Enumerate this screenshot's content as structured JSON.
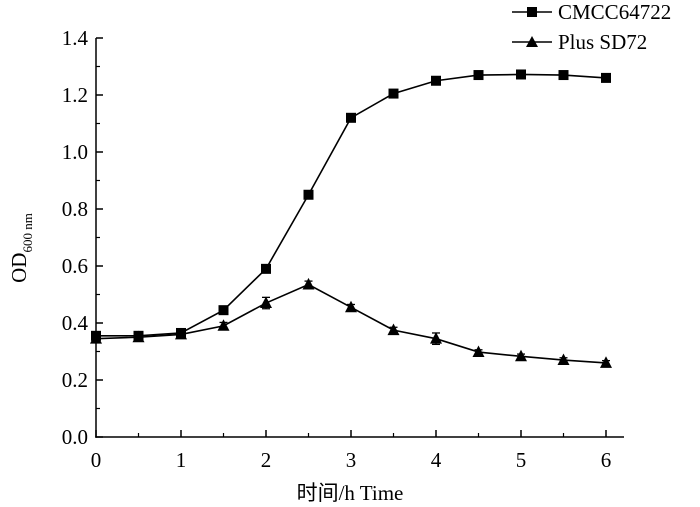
{
  "chart_data": {
    "type": "line",
    "title": "",
    "xlabel": "时间/h  Time",
    "ylabel": {
      "main": "OD",
      "subscript": "600 nm"
    },
    "xlim": [
      0,
      6
    ],
    "ylim": [
      0,
      1.4
    ],
    "x_ticks": [
      "0",
      "1",
      "2",
      "3",
      "4",
      "5",
      "6"
    ],
    "y_ticks": [
      "0.0",
      "0.2",
      "0.4",
      "0.6",
      "0.8",
      "1.0",
      "1.2",
      "1.4"
    ],
    "x": [
      0,
      0.5,
      1,
      1.5,
      2,
      2.5,
      3,
      3.5,
      4,
      4.5,
      5,
      5.5,
      6
    ],
    "legend_position": "top-right",
    "series": [
      {
        "name": "CMCC64722",
        "marker": "square",
        "values": [
          0.355,
          0.355,
          0.365,
          0.445,
          0.59,
          0.85,
          1.12,
          1.205,
          1.25,
          1.27,
          1.272,
          1.27,
          1.26
        ],
        "errors": [
          0.008,
          0.006,
          0.006,
          0.006,
          0.008,
          0.008,
          0.008,
          0.006,
          0.006,
          0.006,
          0.006,
          0.006,
          0.006
        ]
      },
      {
        "name": "Plus SD72",
        "marker": "triangle",
        "values": [
          0.345,
          0.35,
          0.36,
          0.39,
          0.47,
          0.535,
          0.455,
          0.375,
          0.345,
          0.298,
          0.283,
          0.27,
          0.26
        ],
        "errors": [
          0.008,
          0.008,
          0.01,
          0.012,
          0.02,
          0.012,
          0.01,
          0.01,
          0.02,
          0.008,
          0.008,
          0.008,
          0.008
        ]
      }
    ]
  }
}
